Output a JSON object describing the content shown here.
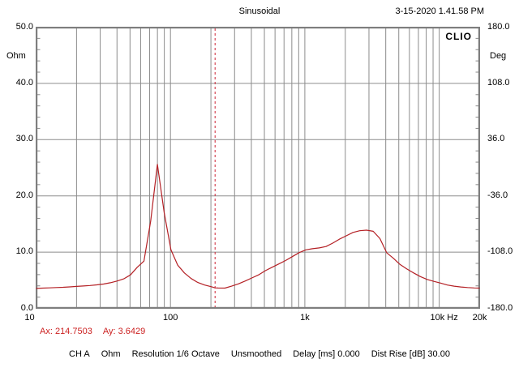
{
  "header": {
    "signal_type": "Sinusoidal",
    "datetime": "3-15-2020 1.41.58 PM"
  },
  "brand": "CLIO",
  "cursor_readout": {
    "ax": "Ax: 214.7503",
    "ay": "Ay: 3.6429"
  },
  "status": {
    "segments": [
      "CH A",
      "Ohm",
      "Resolution 1/6 Octave",
      "Unsmoothed",
      "Delay [ms] 0.000",
      "Dist Rise [dB] 30.00"
    ]
  },
  "colors": {
    "curve": "#b42025",
    "cursor_line": "#cc2233",
    "grid": "#8c8c8c",
    "border": "#7e7e7e",
    "readout_text": "#cc2222",
    "text": "#000000",
    "background": "#ffffff"
  },
  "chart_data": {
    "type": "line",
    "title": "Sinusoidal",
    "x_axis": {
      "unit": "Hz",
      "scale": "log",
      "min": 10,
      "max": 20000,
      "ticks": [
        {
          "f": 10,
          "label": "10"
        },
        {
          "f": 100,
          "label": "100"
        },
        {
          "f": 1000,
          "label": "1k"
        },
        {
          "f": 10000,
          "label": "10k Hz"
        },
        {
          "f": 20000,
          "label": "20k"
        }
      ]
    },
    "y_axis_left": {
      "unit": "Ohm",
      "min": 0,
      "max": 50,
      "minor_tick_step": 2,
      "ticks": [
        {
          "v": 50,
          "label": "50.0"
        },
        {
          "v": 40,
          "label": "40.0"
        },
        {
          "v": 30,
          "label": "30.0"
        },
        {
          "v": 20,
          "label": "20.0"
        },
        {
          "v": 10,
          "label": "10.0"
        },
        {
          "v": 0,
          "label": "0.0"
        }
      ]
    },
    "y_axis_right": {
      "unit": "Deg",
      "min": -180,
      "max": 180,
      "ticks": [
        {
          "v": 180,
          "label": "180.0"
        },
        {
          "v": 108,
          "label": "108.0"
        },
        {
          "v": 36,
          "label": "36.0"
        },
        {
          "v": -36,
          "label": "-36.0"
        },
        {
          "v": -108,
          "label": "-108.0"
        },
        {
          "v": -180,
          "label": "-180.0"
        }
      ]
    },
    "grid": {
      "horizontal_major": [
        10,
        20,
        30,
        40
      ],
      "vertical_log_minors": true
    },
    "legend_position": "none",
    "cursor": {
      "freq_hz": 214.7503,
      "value_ohm": 3.6429,
      "style": "vertical-dashed"
    },
    "series": [
      {
        "name": "CH A Impedance",
        "unit": "Ohm",
        "color": "#b42025",
        "points": [
          [
            10,
            3.55
          ],
          [
            11.22,
            3.6
          ],
          [
            12.6,
            3.65
          ],
          [
            14.14,
            3.7
          ],
          [
            15.87,
            3.75
          ],
          [
            17.82,
            3.82
          ],
          [
            20,
            3.9
          ],
          [
            22.45,
            3.98
          ],
          [
            25.2,
            4.07
          ],
          [
            28.28,
            4.18
          ],
          [
            31.75,
            4.32
          ],
          [
            35.64,
            4.55
          ],
          [
            40,
            4.85
          ],
          [
            44.9,
            5.25
          ],
          [
            50.4,
            5.95
          ],
          [
            56.57,
            7.3
          ],
          [
            63.5,
            8.4
          ],
          [
            71.27,
            15.5
          ],
          [
            80,
            25.6
          ],
          [
            89.8,
            17.0
          ],
          [
            100.8,
            10.4
          ],
          [
            113.1,
            7.7
          ],
          [
            127,
            6.3
          ],
          [
            142.5,
            5.3
          ],
          [
            160,
            4.6
          ],
          [
            179.6,
            4.15
          ],
          [
            201.6,
            3.85
          ],
          [
            214.75,
            3.64
          ],
          [
            226.3,
            3.62
          ],
          [
            254,
            3.6
          ],
          [
            285.1,
            3.95
          ],
          [
            320,
            4.35
          ],
          [
            359.2,
            4.85
          ],
          [
            403.2,
            5.4
          ],
          [
            452.5,
            5.95
          ],
          [
            508,
            6.7
          ],
          [
            570.2,
            7.3
          ],
          [
            640,
            7.9
          ],
          [
            718.4,
            8.5
          ],
          [
            806.3,
            9.2
          ],
          [
            905.1,
            9.9
          ],
          [
            1016,
            10.4
          ],
          [
            1140,
            10.6
          ],
          [
            1280,
            10.75
          ],
          [
            1437,
            11.0
          ],
          [
            1613,
            11.6
          ],
          [
            1810,
            12.3
          ],
          [
            2032,
            12.9
          ],
          [
            2281,
            13.5
          ],
          [
            2560,
            13.8
          ],
          [
            2873,
            13.9
          ],
          [
            3225,
            13.7
          ],
          [
            3620,
            12.4
          ],
          [
            4063,
            9.9
          ],
          [
            4561,
            8.9
          ],
          [
            5120,
            7.8
          ],
          [
            5746,
            7.0
          ],
          [
            6450,
            6.3
          ],
          [
            7240,
            5.65
          ],
          [
            8127,
            5.15
          ],
          [
            9122,
            4.8
          ],
          [
            10240,
            4.5
          ],
          [
            11494,
            4.15
          ],
          [
            12902,
            3.95
          ],
          [
            14482,
            3.8
          ],
          [
            16255,
            3.7
          ],
          [
            18248,
            3.63
          ],
          [
            20000,
            3.6
          ]
        ]
      }
    ]
  }
}
